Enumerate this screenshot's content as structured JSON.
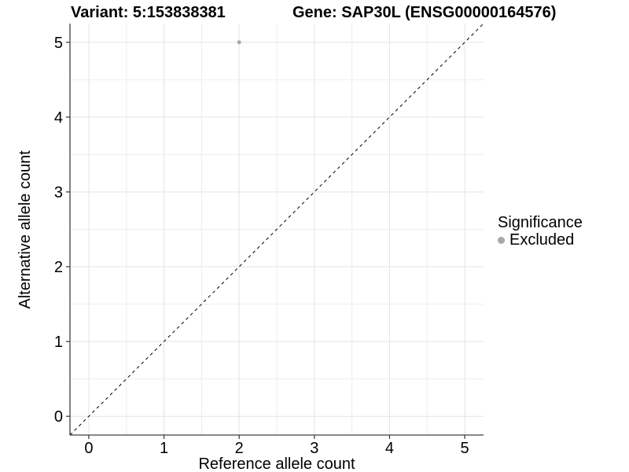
{
  "header": {
    "variant_title": "Variant: 5:153838381",
    "gene_title": "Gene: SAP30L (ENSG00000164576)"
  },
  "chart_data": {
    "type": "scatter",
    "title": "Variant: 5:153838381   Gene: SAP30L (ENSG00000164576)",
    "xlabel": "Reference allele count",
    "ylabel": "Alternative allele count",
    "xlim": [
      -0.25,
      5.25
    ],
    "ylim": [
      -0.25,
      5.25
    ],
    "x_ticks": [
      0,
      1,
      2,
      3,
      4,
      5
    ],
    "y_ticks": [
      0,
      1,
      2,
      3,
      4,
      5
    ],
    "minor_step": 0.5,
    "grid": true,
    "legend_position": "right",
    "series": [
      {
        "name": "Excluded",
        "color": "#a8a8a8",
        "points": [
          {
            "x": 2,
            "y": 5
          }
        ]
      }
    ],
    "reference_line": {
      "type": "identity",
      "slope": 1,
      "intercept": 0,
      "style": "dashed",
      "color": "#000000"
    },
    "legend": {
      "title": "Significance",
      "items": [
        {
          "label": "Excluded",
          "color": "#a8a8a8"
        }
      ]
    }
  },
  "colors": {
    "background": "#ffffff",
    "grid_major": "#e3e3e3",
    "grid_minor": "#eeeeee",
    "axis_line": "#404040",
    "text": "#000000",
    "point": "#a8a8a8"
  }
}
